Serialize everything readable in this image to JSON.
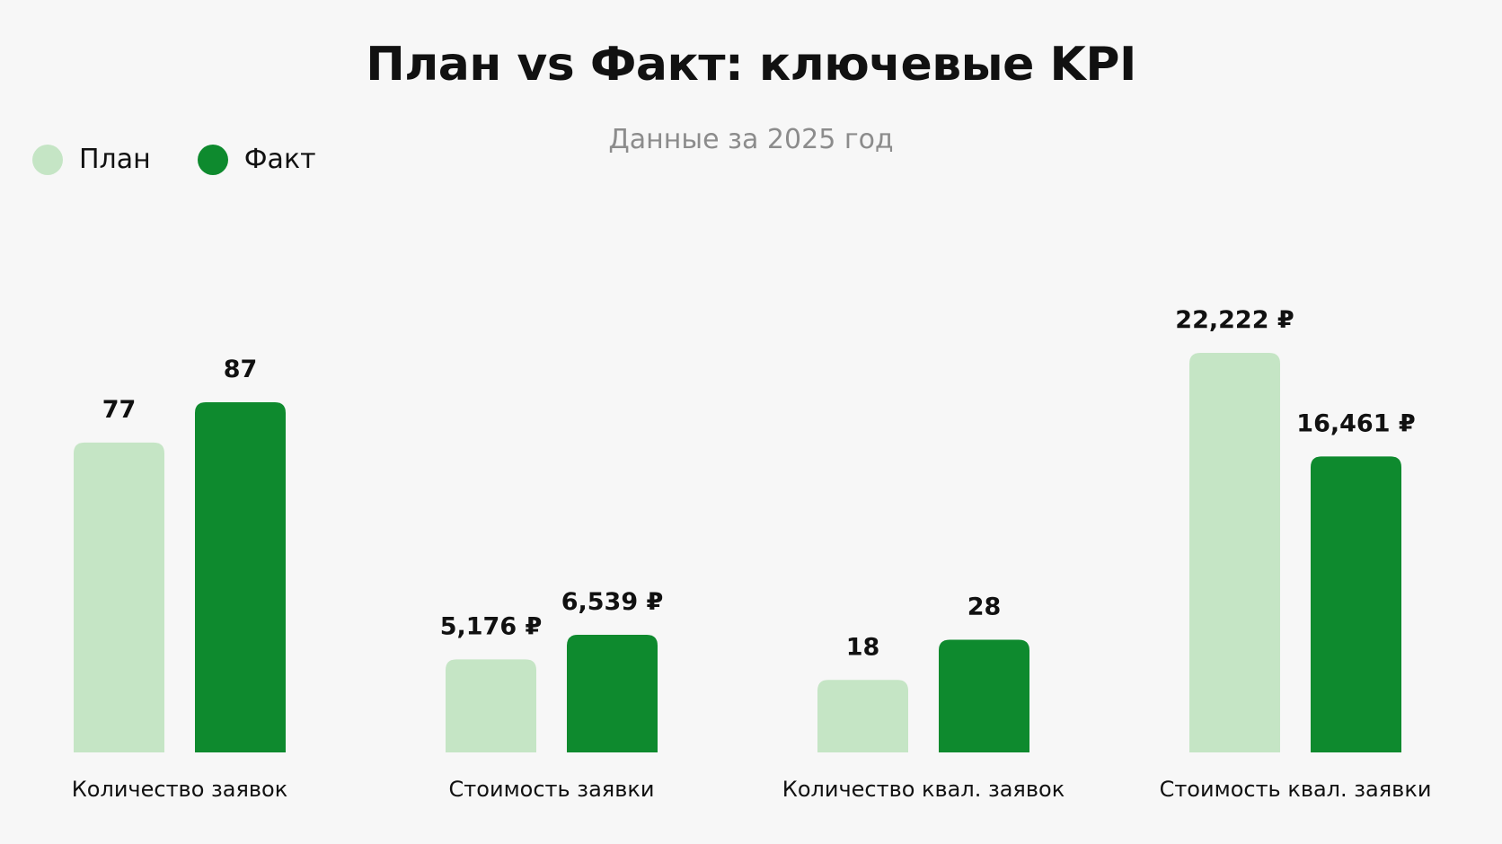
{
  "chart_data": {
    "type": "bar",
    "title": "План vs Факт: ключевые KPI",
    "subtitle": "Данные за 2025 год",
    "legend_position": "top-left",
    "grid": false,
    "categories": [
      "Количество заявок",
      "Стоимость заявки",
      "Количество квал. заявок",
      "Стоимость квал. заявки"
    ],
    "series": [
      {
        "name": "План",
        "color": "#c5e5c5",
        "values": [
          77,
          5176,
          18,
          22222
        ],
        "labels": [
          "77",
          "5,176 ₽",
          "18",
          "22,222 ₽"
        ]
      },
      {
        "name": "Факт",
        "color": "#0e8a2e",
        "values": [
          87,
          6539,
          28,
          16461
        ],
        "labels": [
          "87",
          "6,539 ₽",
          "28",
          "16,461 ₽"
        ]
      }
    ]
  }
}
